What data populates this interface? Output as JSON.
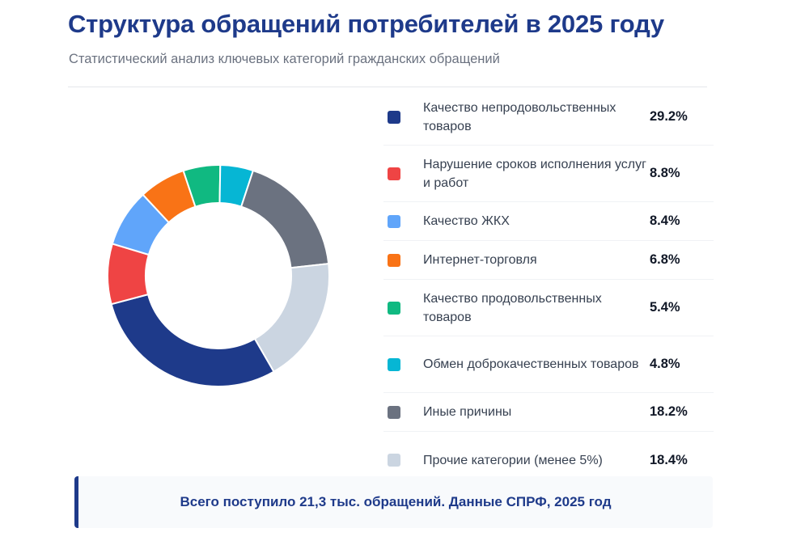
{
  "header": {
    "title": "Структура обращений потребителей в 2025 году",
    "subtitle": "Статистический анализ ключевых категорий гражданских обращений"
  },
  "chart_data": {
    "type": "pie",
    "variant": "donut",
    "title": "Структура обращений потребителей в 2025 году",
    "unit": "%",
    "legend_position": "right",
    "categories": [
      "Качество непродовольственных товаров",
      "Нарушение сроков исполнения услуг и работ",
      "Качество ЖКХ",
      "Интернет-торговля",
      "Качество продовольственных товаров",
      "Обмен доброкачественных товаров",
      "Иные причины",
      "Прочие категории (менее 5%)"
    ],
    "values": [
      29.2,
      8.8,
      8.4,
      6.8,
      5.4,
      4.8,
      18.2,
      18.4
    ],
    "value_labels": [
      "29.2%",
      "8.8%",
      "8.4%",
      "6.8%",
      "5.4%",
      "4.8%",
      "18.2%",
      "18.4%"
    ],
    "colors": [
      "#1e3a8a",
      "#ef4444",
      "#60a5fa",
      "#f97316",
      "#10b981",
      "#06b6d4",
      "#6b7280",
      "#cbd5e1"
    ]
  },
  "footer": {
    "text": "Всего поступило 21,3 тыс. обращений. Данные СПРФ, 2025 год"
  }
}
